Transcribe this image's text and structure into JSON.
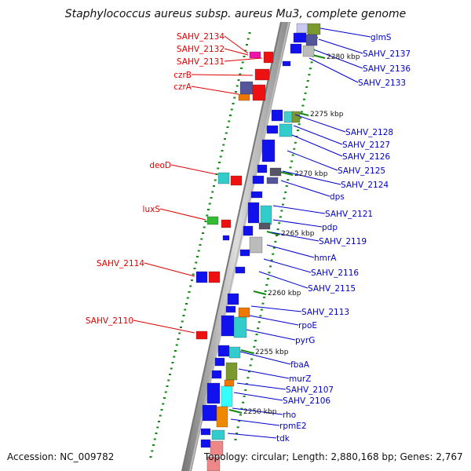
{
  "title": "Staphylococcus aureus subsp. aureus Mu3, complete genome",
  "accession": "Accession: NC_009782",
  "topology": "Topology: circular; Length: 2,880,168 bp; Genes: 2,767",
  "colors": {
    "left_label": "#dd0000",
    "right_label": "#0000cc",
    "blue_arrow": "#1111ee",
    "red_arrow": "#ee1111",
    "tick": "#118811",
    "axis": "#888888"
  },
  "kbp_markers": [
    {
      "label": "2280 kbp"
    },
    {
      "label": "2275 kbp"
    },
    {
      "label": "2270 kbp"
    },
    {
      "label": "2265 kbp"
    },
    {
      "label": "2260 kbp"
    },
    {
      "label": "2255 kbp"
    },
    {
      "label": "2250 kbp"
    }
  ],
  "left_genes": [
    {
      "name": "SAHV_2134"
    },
    {
      "name": "SAHV_2132"
    },
    {
      "name": "SAHV_2131"
    },
    {
      "name": "czrB"
    },
    {
      "name": "czrA"
    },
    {
      "name": "deoD"
    },
    {
      "name": "luxS"
    },
    {
      "name": "SAHV_2114"
    },
    {
      "name": "SAHV_2110"
    }
  ],
  "right_genes": [
    {
      "name": "glmS"
    },
    {
      "name": "SAHV_2137"
    },
    {
      "name": "SAHV_2136"
    },
    {
      "name": "SAHV_2133"
    },
    {
      "name": "SAHV_2128"
    },
    {
      "name": "SAHV_2127"
    },
    {
      "name": "SAHV_2126"
    },
    {
      "name": "SAHV_2125"
    },
    {
      "name": "SAHV_2124"
    },
    {
      "name": "dps"
    },
    {
      "name": "SAHV_2121"
    },
    {
      "name": "pdp"
    },
    {
      "name": "SAHV_2119"
    },
    {
      "name": "hmrA"
    },
    {
      "name": "SAHV_2116"
    },
    {
      "name": "SAHV_2115"
    },
    {
      "name": "SAHV_2113"
    },
    {
      "name": "rpoE"
    },
    {
      "name": "pyrG"
    },
    {
      "name": "fbaA"
    },
    {
      "name": "murZ"
    },
    {
      "name": "SAHV_2107"
    },
    {
      "name": "SAHV_2106"
    },
    {
      "name": "rho"
    },
    {
      "name": "rpmE2"
    },
    {
      "name": "tdk"
    }
  ]
}
